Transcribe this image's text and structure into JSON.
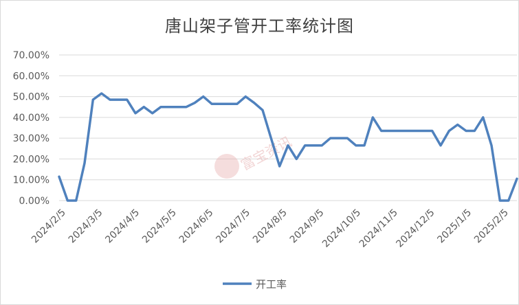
{
  "chart_data": {
    "type": "line",
    "title": "唐山架子管开工率统计图",
    "xlabel": "",
    "ylabel": "",
    "ylim": [
      0,
      70
    ],
    "y_ticks": [
      "0.00%",
      "10.00%",
      "20.00%",
      "30.00%",
      "40.00%",
      "50.00%",
      "60.00%",
      "70.00%"
    ],
    "x_ticks": [
      "2024/2/5",
      "2024/3/5",
      "2024/4/5",
      "2024/5/5",
      "2024/6/5",
      "2024/7/5",
      "2024/8/5",
      "2024/9/5",
      "2024/10/5",
      "2024/11/5",
      "2024/12/5",
      "2025/1/5",
      "2025/2/5"
    ],
    "grid": true,
    "legend_position": "bottom",
    "series": [
      {
        "name": "开工率",
        "color": "#4f81bd",
        "values": [
          11.5,
          0,
          0,
          18,
          48.5,
          51.5,
          48.5,
          48.5,
          48.5,
          42,
          45,
          42,
          45,
          45,
          45,
          45,
          47,
          50,
          46.5,
          46.5,
          46.5,
          46.5,
          50,
          47,
          43.5,
          30,
          16.5,
          26.5,
          20,
          26.5,
          26.5,
          26.5,
          30,
          30,
          30,
          26.5,
          26.5,
          40,
          33.5,
          33.5,
          33.5,
          33.5,
          33.5,
          33.5,
          33.5,
          26.5,
          33.5,
          36.5,
          33.5,
          33.5,
          40,
          26.5,
          0,
          0,
          10.5
        ]
      }
    ]
  },
  "watermark": {
    "text": "富宝资讯"
  }
}
